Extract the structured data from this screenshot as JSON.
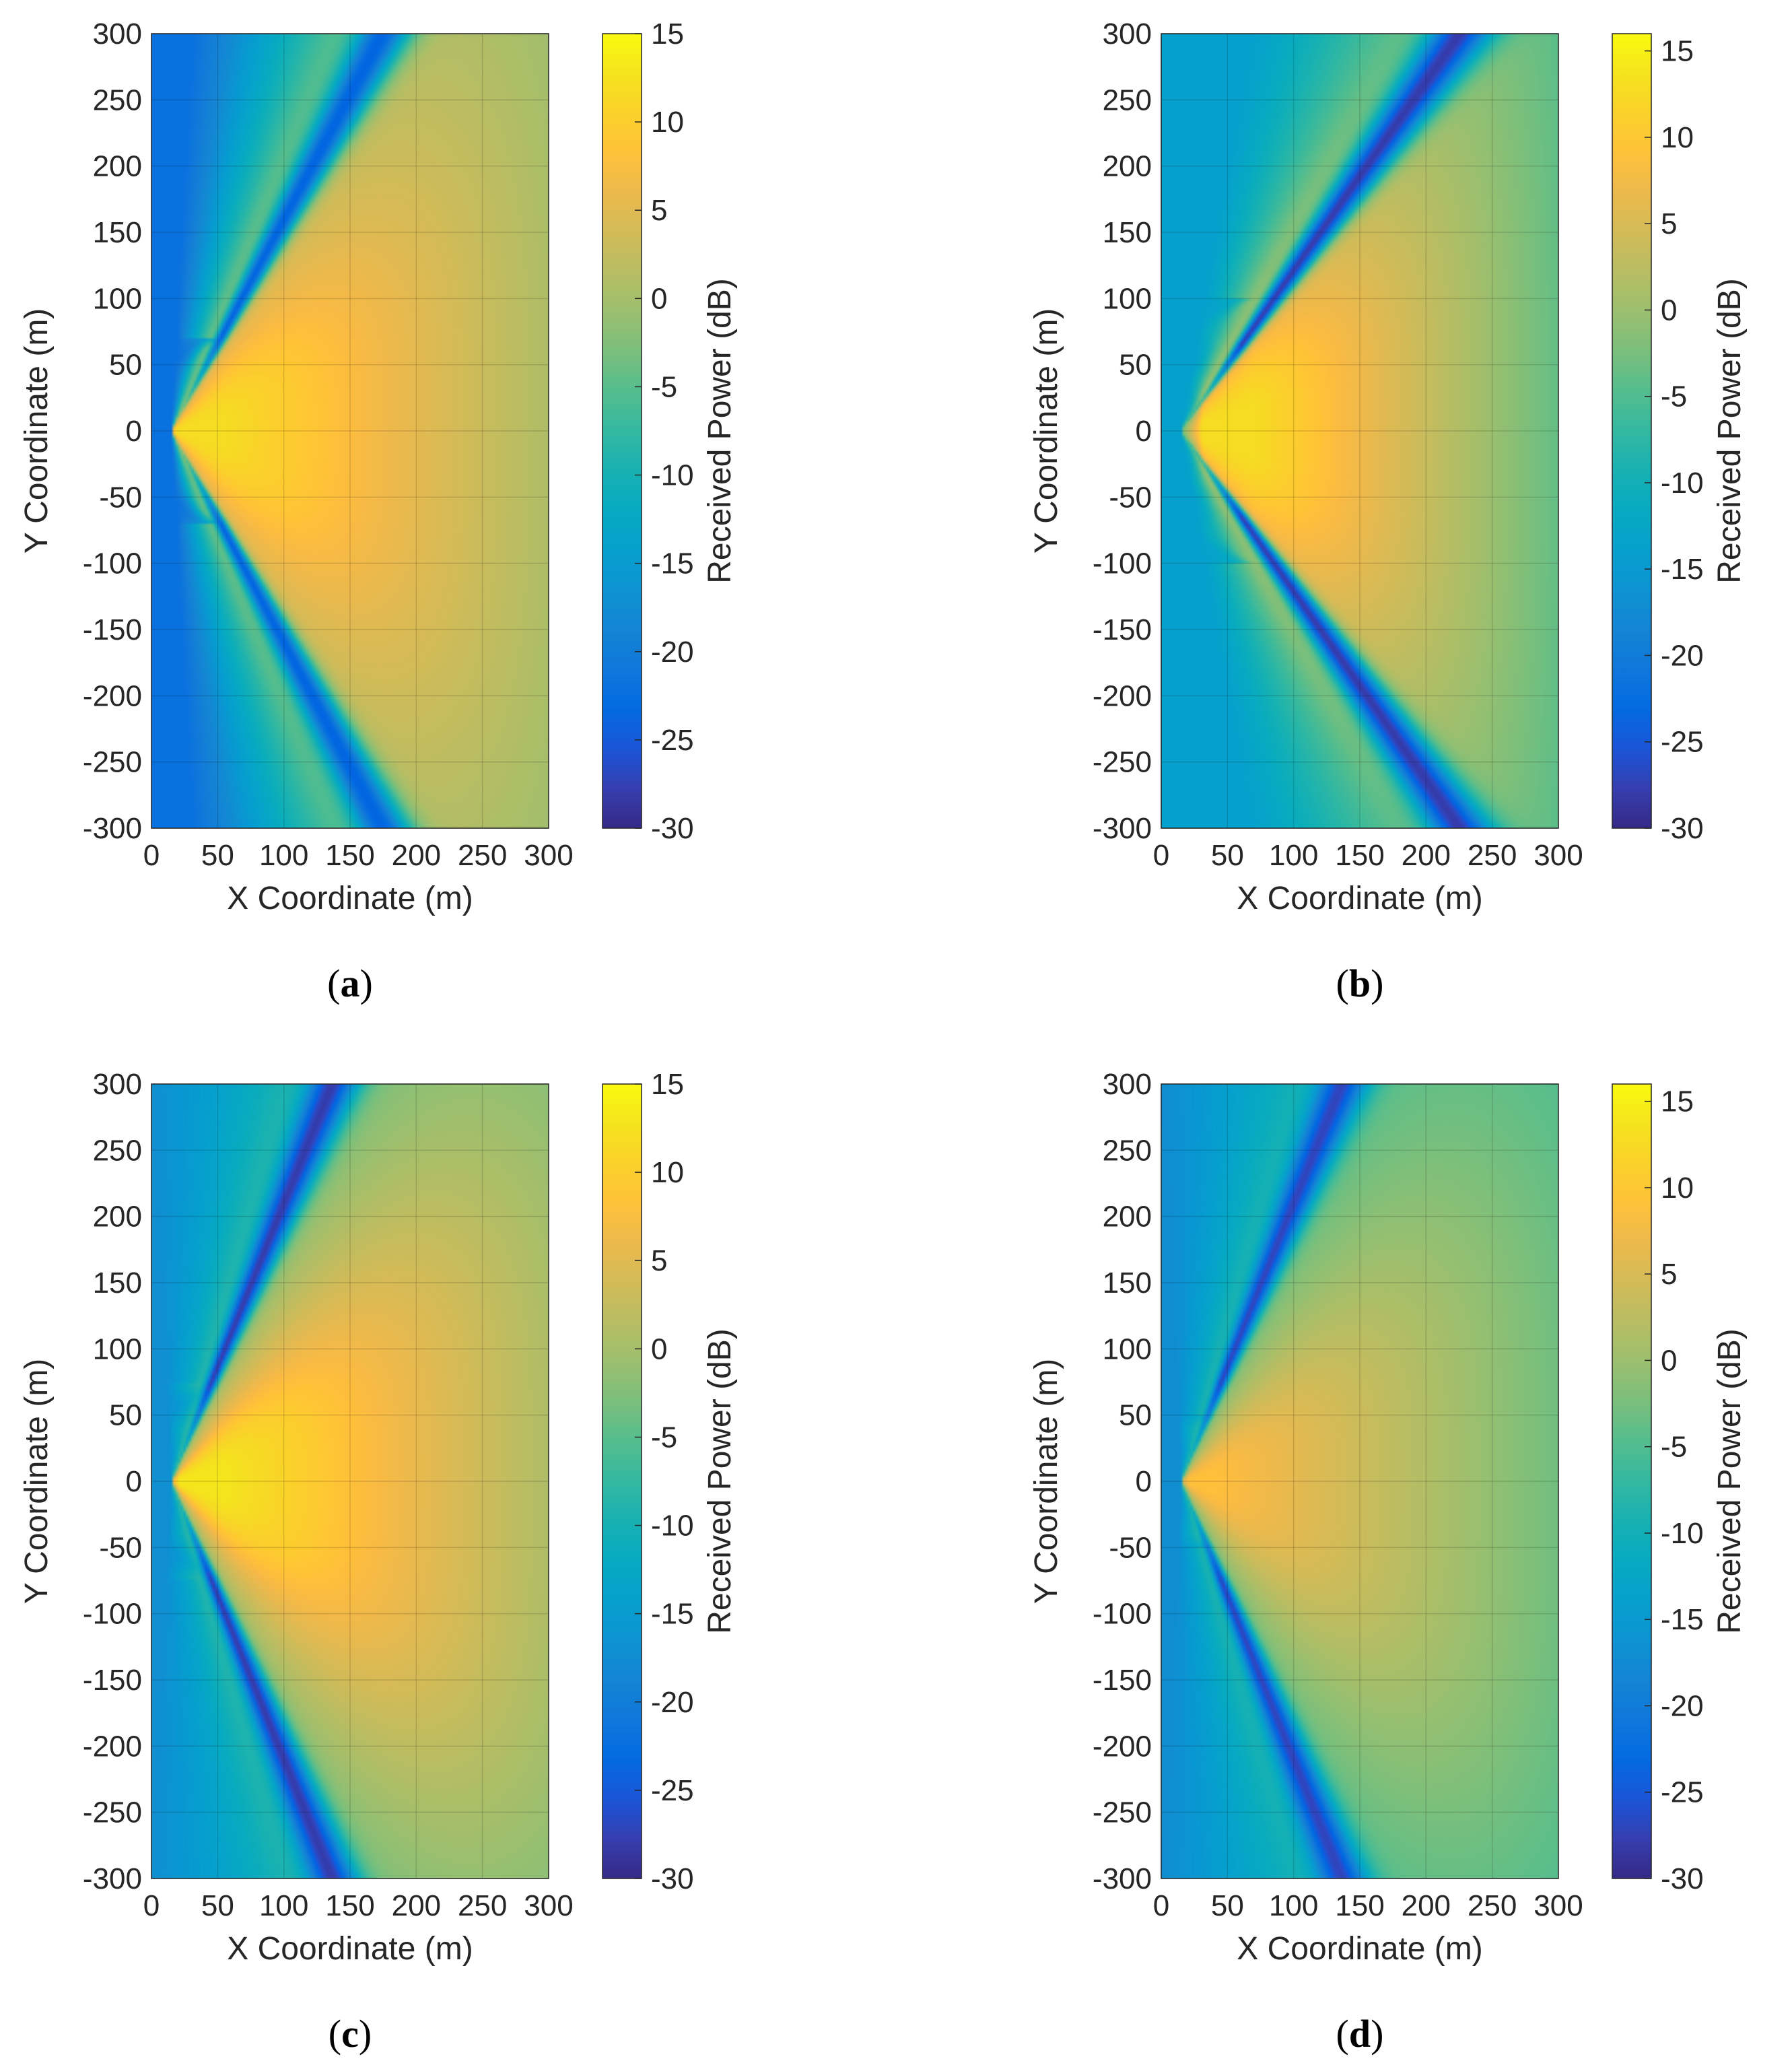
{
  "chart_data": [
    {
      "type": "heatmap",
      "panel": "a",
      "caption_letter": "a",
      "xlabel": "X Coordinate (m)",
      "ylabel": "Y Coordinate (m)",
      "colorbar_label": "Received Power (dB)",
      "xlim": [
        0,
        300
      ],
      "ylim": [
        -300,
        300
      ],
      "xticks": [
        "0",
        "50",
        "100",
        "150",
        "200",
        "250",
        "300"
      ],
      "yticks": [
        "300",
        "250",
        "200",
        "150",
        "100",
        "50",
        "0",
        "-50",
        "-100",
        "-150",
        "-200",
        "-250",
        "-300"
      ],
      "clim": [
        -30,
        15
      ],
      "cticks": [
        "15",
        "10",
        "5",
        "0",
        "-5",
        "-10",
        "-15",
        "-20",
        "-25",
        "-30"
      ],
      "grid": true,
      "model": {
        "focus_x": 55,
        "peak_db": 12,
        "edge_y": 70,
        "arc_depth": 42,
        "null_angle_deg": 62,
        "null_db": -24,
        "far_db": 0,
        "blue_db": -22,
        "side_db": -4
      }
    },
    {
      "type": "heatmap",
      "panel": "b",
      "caption_letter": "b",
      "xlabel": "X Coordinate (m)",
      "ylabel": "Y Coordinate (m)",
      "colorbar_label": "Received Power (dB)",
      "xlim": [
        0,
        300
      ],
      "ylim": [
        -300,
        300
      ],
      "xticks": [
        "0",
        "50",
        "100",
        "150",
        "200",
        "250",
        "300"
      ],
      "yticks": [
        "300",
        "250",
        "200",
        "150",
        "100",
        "50",
        "0",
        "-50",
        "-100",
        "-150",
        "-200",
        "-250",
        "-300"
      ],
      "clim": [
        -30,
        16
      ],
      "cticks": [
        "15",
        "10",
        "5",
        "0",
        "-5",
        "-10",
        "-15",
        "-20",
        "-25",
        "-30"
      ],
      "grid": true,
      "model": {
        "focus_x": 70,
        "peak_db": 13,
        "edge_y": 100,
        "arc_depth": 45,
        "null_angle_deg": 55,
        "null_db": -28,
        "far_db": -6,
        "blue_db": -14,
        "side_db": -6
      }
    },
    {
      "type": "heatmap",
      "panel": "c",
      "caption_letter": "c",
      "xlabel": "X Coordinate (m)",
      "ylabel": "Y Coordinate (m)",
      "colorbar_label": "Received Power (dB)",
      "xlim": [
        0,
        300
      ],
      "ylim": [
        -300,
        300
      ],
      "xticks": [
        "0",
        "50",
        "100",
        "150",
        "200",
        "250",
        "300"
      ],
      "yticks": [
        "300",
        "250",
        "200",
        "150",
        "100",
        "50",
        "0",
        "-50",
        "-100",
        "-150",
        "-200",
        "-250",
        "-300"
      ],
      "clim": [
        -30,
        15
      ],
      "cticks": [
        "15",
        "10",
        "5",
        "0",
        "-5",
        "-10",
        "-15",
        "-20",
        "-25",
        "-30"
      ],
      "grid": true,
      "model": {
        "focus_x": 55,
        "peak_db": 13,
        "edge_y": 75,
        "arc_depth": 40,
        "null_angle_deg": 68,
        "null_db": -28,
        "far_db": 0,
        "blue_db": -17,
        "side_db": -12
      }
    },
    {
      "type": "heatmap",
      "panel": "d",
      "caption_letter": "d",
      "xlabel": "X Coordinate (m)",
      "ylabel": "Y Coordinate (m)",
      "colorbar_label": "Received Power (dB)",
      "xlim": [
        0,
        300
      ],
      "ylim": [
        -300,
        300
      ],
      "xticks": [
        "0",
        "50",
        "100",
        "150",
        "200",
        "250",
        "300"
      ],
      "yticks": [
        "300",
        "250",
        "200",
        "150",
        "100",
        "50",
        "0",
        "-50",
        "-100",
        "-150",
        "-200",
        "-250",
        "-300"
      ],
      "clim": [
        -30,
        16
      ],
      "cticks": [
        "15",
        "10",
        "5",
        "0",
        "-5",
        "-10",
        "-15",
        "-20",
        "-25",
        "-30"
      ],
      "grid": true,
      "model": {
        "focus_x": 40,
        "peak_db": 9,
        "edge_y": 50,
        "arc_depth": 25,
        "null_angle_deg": 68,
        "null_db": -27,
        "far_db": -3,
        "blue_db": -17,
        "side_db": -12
      }
    }
  ]
}
